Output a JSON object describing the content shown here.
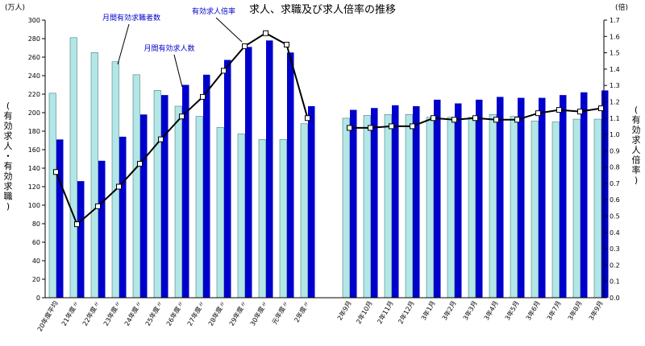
{
  "chart_data": {
    "type": "bar",
    "title": "求人、求職及び求人倍率の推移",
    "left_unit": "(万人)",
    "right_unit": "(倍)",
    "left_axis_label": "(有効求人・有効求職)",
    "right_axis_label": "(有効求人倍率)",
    "ylim_left": [
      0,
      300
    ],
    "ylim_right": [
      0.0,
      1.7
    ],
    "left_ticks": [
      "0",
      "20",
      "40",
      "60",
      "80",
      "100",
      "120",
      "140",
      "160",
      "180",
      "200",
      "220",
      "240",
      "260",
      "280",
      "300"
    ],
    "right_ticks": [
      "0.0",
      "0.1",
      "0.2",
      "0.3",
      "0.4",
      "0.5",
      "0.6",
      "0.7",
      "0.8",
      "0.9",
      "1.0",
      "1.1",
      "1.2",
      "1.3",
      "1.4",
      "1.5",
      "1.6",
      "1.7"
    ],
    "categories_annual": [
      "20年度平均",
      "21年度〃",
      "22年度〃",
      "23年度〃",
      "24年度〃",
      "25年度〃",
      "26年度〃",
      "27年度〃",
      "28年度〃",
      "29年度〃",
      "30年度〃",
      "元年度〃",
      "2年度〃"
    ],
    "categories_monthly": [
      "2年9月",
      "2年10月",
      "2年11月",
      "2年12月",
      "3年1月",
      "3年2月",
      "3年3月",
      "3年4月",
      "3年5月",
      "3年6月",
      "3年7月",
      "3年8月",
      "3年9月"
    ],
    "series": [
      {
        "name": "月間有効求職者数",
        "color": "#b3e6e6",
        "annual": [
          221,
          281,
          265,
          255,
          241,
          224,
          207,
          196,
          184,
          177,
          171,
          171,
          188
        ],
        "monthly": [
          194,
          197,
          198,
          198,
          195,
          195,
          195,
          198,
          196,
          191,
          190,
          193,
          193
        ]
      },
      {
        "name": "月間有効求人数",
        "color": "#0000cc",
        "annual": [
          171,
          126,
          148,
          174,
          198,
          219,
          230,
          241,
          257,
          271,
          278,
          265,
          207
        ],
        "monthly": [
          203,
          205,
          208,
          207,
          214,
          210,
          214,
          217,
          216,
          216,
          219,
          222,
          224
        ]
      },
      {
        "name": "有効求人倍率",
        "type": "line",
        "annual": [
          0.77,
          0.45,
          0.56,
          0.68,
          0.82,
          0.97,
          1.11,
          1.23,
          1.39,
          1.54,
          1.62,
          1.55,
          1.1
        ],
        "monthly": [
          1.04,
          1.04,
          1.05,
          1.05,
          1.1,
          1.09,
          1.1,
          1.09,
          1.09,
          1.13,
          1.15,
          1.14,
          1.16
        ]
      }
    ]
  }
}
